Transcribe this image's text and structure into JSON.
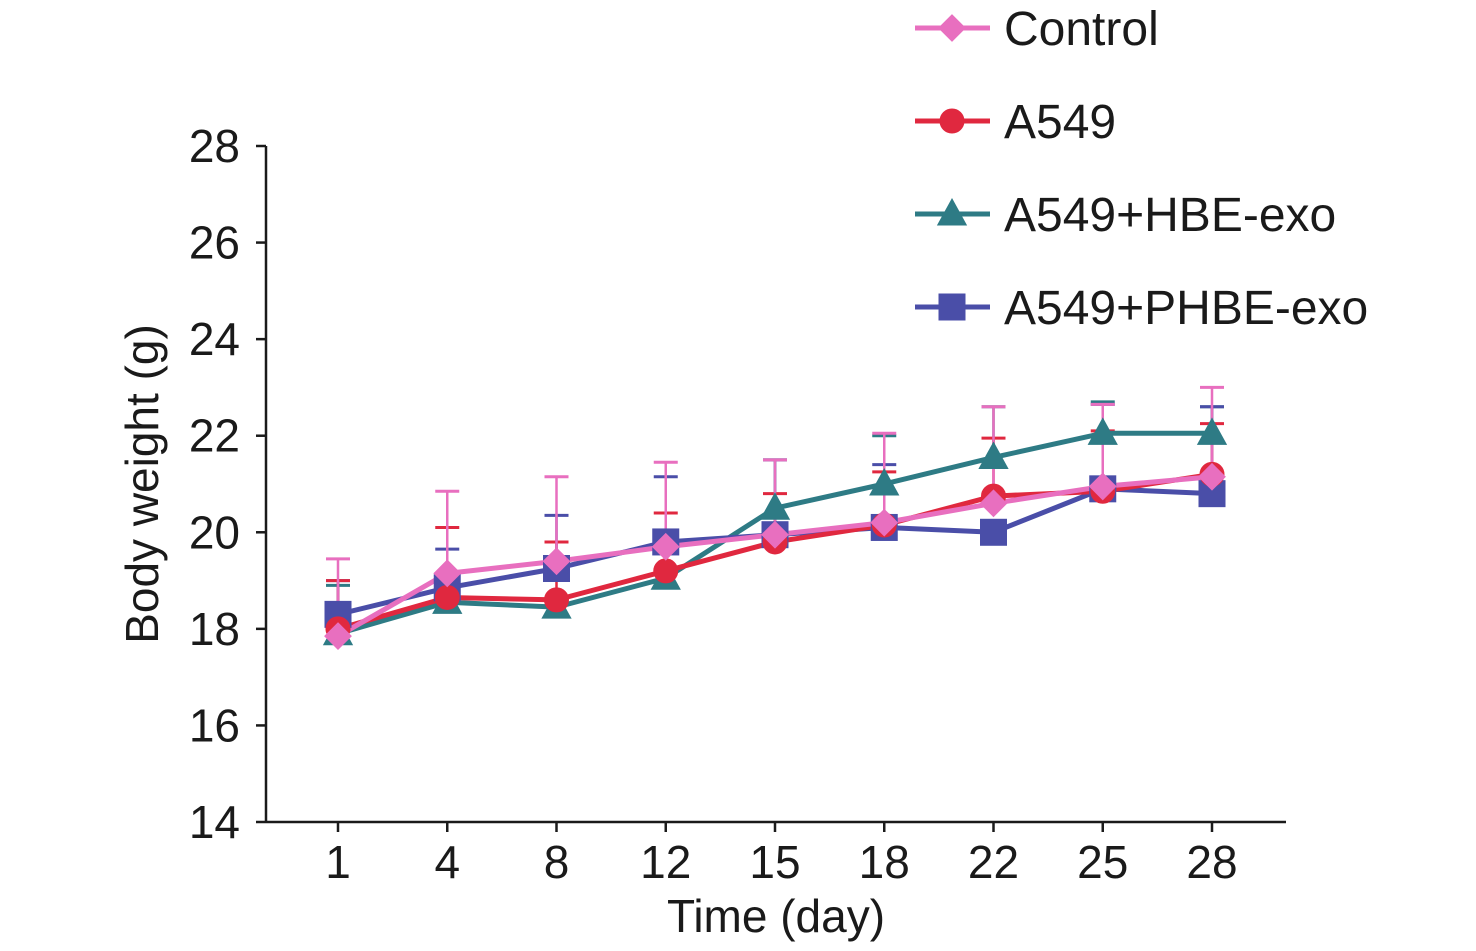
{
  "chart_data": {
    "type": "line",
    "title": "",
    "xlabel": "Time (day)",
    "ylabel": "Body weight (g)",
    "x": [
      "1",
      "4",
      "8",
      "12",
      "15",
      "18",
      "22",
      "25",
      "28"
    ],
    "ylim": [
      14,
      28
    ],
    "yticks": [
      "14",
      "16",
      "18",
      "20",
      "22",
      "24",
      "26",
      "28"
    ],
    "grid": false,
    "legend_position": "top-right",
    "series": [
      {
        "name": "A549+HBE-exo",
        "color": "#2e7b85",
        "marker": "triangle",
        "values": [
          17.9,
          18.55,
          18.45,
          19.05,
          20.5,
          21.0,
          21.55,
          22.05,
          22.05
        ],
        "errors": [
          1.0,
          0.0,
          0.0,
          0.0,
          1.0,
          1.0,
          1.05,
          0.65,
          0.55
        ]
      },
      {
        "name": "A549+PHBE-exo",
        "color": "#4a4ea8",
        "marker": "square",
        "values": [
          18.3,
          18.85,
          19.25,
          19.8,
          19.95,
          20.1,
          20.0,
          20.9,
          20.8
        ],
        "errors": [
          0.7,
          0.8,
          1.1,
          1.35,
          1.55,
          1.3,
          0.0,
          1.75,
          1.8
        ]
      },
      {
        "name": "A549",
        "color": "#e0283f",
        "marker": "circle",
        "values": [
          18.0,
          18.65,
          18.6,
          19.2,
          19.8,
          20.15,
          20.75,
          20.85,
          21.2
        ],
        "errors": [
          1.0,
          1.45,
          1.2,
          1.2,
          1.0,
          1.1,
          1.2,
          1.25,
          1.05
        ]
      },
      {
        "name": "Control",
        "color": "#e86fbf",
        "marker": "diamond",
        "values": [
          17.85,
          19.15,
          19.4,
          19.7,
          19.95,
          20.2,
          20.6,
          20.95,
          21.15
        ],
        "errors": [
          1.6,
          1.7,
          1.75,
          1.75,
          1.55,
          1.85,
          2.0,
          1.7,
          1.85
        ]
      }
    ]
  }
}
